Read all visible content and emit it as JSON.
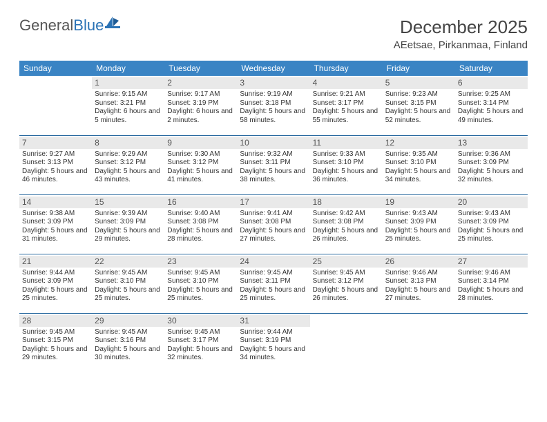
{
  "logo": {
    "text_gray": "General",
    "text_blue": "Blue"
  },
  "title": "December 2025",
  "location": "AEetsae, Pirkanmaa, Finland",
  "colors": {
    "header_bg": "#3a84c4",
    "header_text": "#ffffff",
    "row_border": "#2a6aa0",
    "daynum_bg": "#e9e9e9",
    "text": "#333333",
    "logo_blue": "#2a72b5"
  },
  "day_headers": [
    "Sunday",
    "Monday",
    "Tuesday",
    "Wednesday",
    "Thursday",
    "Friday",
    "Saturday"
  ],
  "weeks": [
    [
      {
        "n": "",
        "sr": "",
        "ss": "",
        "dl": ""
      },
      {
        "n": "1",
        "sr": "Sunrise: 9:15 AM",
        "ss": "Sunset: 3:21 PM",
        "dl": "Daylight: 6 hours and 5 minutes."
      },
      {
        "n": "2",
        "sr": "Sunrise: 9:17 AM",
        "ss": "Sunset: 3:19 PM",
        "dl": "Daylight: 6 hours and 2 minutes."
      },
      {
        "n": "3",
        "sr": "Sunrise: 9:19 AM",
        "ss": "Sunset: 3:18 PM",
        "dl": "Daylight: 5 hours and 58 minutes."
      },
      {
        "n": "4",
        "sr": "Sunrise: 9:21 AM",
        "ss": "Sunset: 3:17 PM",
        "dl": "Daylight: 5 hours and 55 minutes."
      },
      {
        "n": "5",
        "sr": "Sunrise: 9:23 AM",
        "ss": "Sunset: 3:15 PM",
        "dl": "Daylight: 5 hours and 52 minutes."
      },
      {
        "n": "6",
        "sr": "Sunrise: 9:25 AM",
        "ss": "Sunset: 3:14 PM",
        "dl": "Daylight: 5 hours and 49 minutes."
      }
    ],
    [
      {
        "n": "7",
        "sr": "Sunrise: 9:27 AM",
        "ss": "Sunset: 3:13 PM",
        "dl": "Daylight: 5 hours and 46 minutes."
      },
      {
        "n": "8",
        "sr": "Sunrise: 9:29 AM",
        "ss": "Sunset: 3:12 PM",
        "dl": "Daylight: 5 hours and 43 minutes."
      },
      {
        "n": "9",
        "sr": "Sunrise: 9:30 AM",
        "ss": "Sunset: 3:12 PM",
        "dl": "Daylight: 5 hours and 41 minutes."
      },
      {
        "n": "10",
        "sr": "Sunrise: 9:32 AM",
        "ss": "Sunset: 3:11 PM",
        "dl": "Daylight: 5 hours and 38 minutes."
      },
      {
        "n": "11",
        "sr": "Sunrise: 9:33 AM",
        "ss": "Sunset: 3:10 PM",
        "dl": "Daylight: 5 hours and 36 minutes."
      },
      {
        "n": "12",
        "sr": "Sunrise: 9:35 AM",
        "ss": "Sunset: 3:10 PM",
        "dl": "Daylight: 5 hours and 34 minutes."
      },
      {
        "n": "13",
        "sr": "Sunrise: 9:36 AM",
        "ss": "Sunset: 3:09 PM",
        "dl": "Daylight: 5 hours and 32 minutes."
      }
    ],
    [
      {
        "n": "14",
        "sr": "Sunrise: 9:38 AM",
        "ss": "Sunset: 3:09 PM",
        "dl": "Daylight: 5 hours and 31 minutes."
      },
      {
        "n": "15",
        "sr": "Sunrise: 9:39 AM",
        "ss": "Sunset: 3:09 PM",
        "dl": "Daylight: 5 hours and 29 minutes."
      },
      {
        "n": "16",
        "sr": "Sunrise: 9:40 AM",
        "ss": "Sunset: 3:08 PM",
        "dl": "Daylight: 5 hours and 28 minutes."
      },
      {
        "n": "17",
        "sr": "Sunrise: 9:41 AM",
        "ss": "Sunset: 3:08 PM",
        "dl": "Daylight: 5 hours and 27 minutes."
      },
      {
        "n": "18",
        "sr": "Sunrise: 9:42 AM",
        "ss": "Sunset: 3:08 PM",
        "dl": "Daylight: 5 hours and 26 minutes."
      },
      {
        "n": "19",
        "sr": "Sunrise: 9:43 AM",
        "ss": "Sunset: 3:09 PM",
        "dl": "Daylight: 5 hours and 25 minutes."
      },
      {
        "n": "20",
        "sr": "Sunrise: 9:43 AM",
        "ss": "Sunset: 3:09 PM",
        "dl": "Daylight: 5 hours and 25 minutes."
      }
    ],
    [
      {
        "n": "21",
        "sr": "Sunrise: 9:44 AM",
        "ss": "Sunset: 3:09 PM",
        "dl": "Daylight: 5 hours and 25 minutes."
      },
      {
        "n": "22",
        "sr": "Sunrise: 9:45 AM",
        "ss": "Sunset: 3:10 PM",
        "dl": "Daylight: 5 hours and 25 minutes."
      },
      {
        "n": "23",
        "sr": "Sunrise: 9:45 AM",
        "ss": "Sunset: 3:10 PM",
        "dl": "Daylight: 5 hours and 25 minutes."
      },
      {
        "n": "24",
        "sr": "Sunrise: 9:45 AM",
        "ss": "Sunset: 3:11 PM",
        "dl": "Daylight: 5 hours and 25 minutes."
      },
      {
        "n": "25",
        "sr": "Sunrise: 9:45 AM",
        "ss": "Sunset: 3:12 PM",
        "dl": "Daylight: 5 hours and 26 minutes."
      },
      {
        "n": "26",
        "sr": "Sunrise: 9:46 AM",
        "ss": "Sunset: 3:13 PM",
        "dl": "Daylight: 5 hours and 27 minutes."
      },
      {
        "n": "27",
        "sr": "Sunrise: 9:46 AM",
        "ss": "Sunset: 3:14 PM",
        "dl": "Daylight: 5 hours and 28 minutes."
      }
    ],
    [
      {
        "n": "28",
        "sr": "Sunrise: 9:45 AM",
        "ss": "Sunset: 3:15 PM",
        "dl": "Daylight: 5 hours and 29 minutes."
      },
      {
        "n": "29",
        "sr": "Sunrise: 9:45 AM",
        "ss": "Sunset: 3:16 PM",
        "dl": "Daylight: 5 hours and 30 minutes."
      },
      {
        "n": "30",
        "sr": "Sunrise: 9:45 AM",
        "ss": "Sunset: 3:17 PM",
        "dl": "Daylight: 5 hours and 32 minutes."
      },
      {
        "n": "31",
        "sr": "Sunrise: 9:44 AM",
        "ss": "Sunset: 3:19 PM",
        "dl": "Daylight: 5 hours and 34 minutes."
      },
      {
        "n": "",
        "sr": "",
        "ss": "",
        "dl": ""
      },
      {
        "n": "",
        "sr": "",
        "ss": "",
        "dl": ""
      },
      {
        "n": "",
        "sr": "",
        "ss": "",
        "dl": ""
      }
    ]
  ]
}
